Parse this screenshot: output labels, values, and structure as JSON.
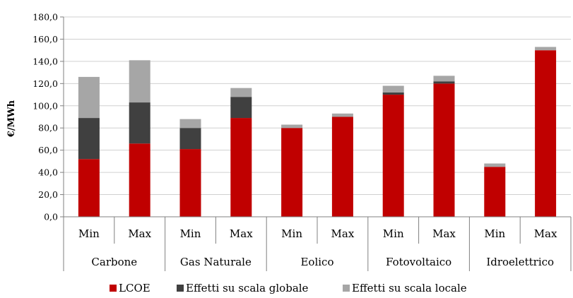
{
  "chart_data": {
    "type": "bar",
    "stacked": true,
    "ylabel": "€/MWh",
    "xlabel": "",
    "ylim": [
      0,
      180
    ],
    "yticks": [
      "0,0",
      "20,0",
      "40,0",
      "60,0",
      "80,0",
      "100,0",
      "120,0",
      "140,0",
      "160,0",
      "180,0"
    ],
    "grid": true,
    "legend_position": "bottom",
    "groups": [
      {
        "name": "Carbone",
        "bars": [
          "Min",
          "Max"
        ]
      },
      {
        "name": "Gas Naturale",
        "bars": [
          "Min",
          "Max"
        ]
      },
      {
        "name": "Eolico",
        "bars": [
          "Min",
          "Max"
        ]
      },
      {
        "name": "Fotovoltaico",
        "bars": [
          "Min",
          "Max"
        ]
      },
      {
        "name": "Idroelettrico",
        "bars": [
          "Min",
          "Max"
        ]
      }
    ],
    "categories": [
      "Carbone Min",
      "Carbone Max",
      "Gas Naturale Min",
      "Gas Naturale Max",
      "Eolico Min",
      "Eolico Max",
      "Fotovoltaico Min",
      "Fotovoltaico Max",
      "Idroelettrico Min",
      "Idroelettrico Max"
    ],
    "series": [
      {
        "name": "LCOE",
        "color": "#c00000",
        "values": [
          52,
          66,
          61,
          89,
          80,
          90,
          110,
          120,
          45,
          150
        ]
      },
      {
        "name": "Effetti su scala globale",
        "color": "#404040",
        "values": [
          37,
          37,
          19,
          19,
          0,
          0,
          2,
          2,
          0,
          0
        ]
      },
      {
        "name": "Effetti su scala locale",
        "color": "#a6a6a6",
        "values": [
          37,
          38,
          8,
          8,
          3,
          3,
          6,
          5,
          3,
          3
        ]
      }
    ]
  }
}
